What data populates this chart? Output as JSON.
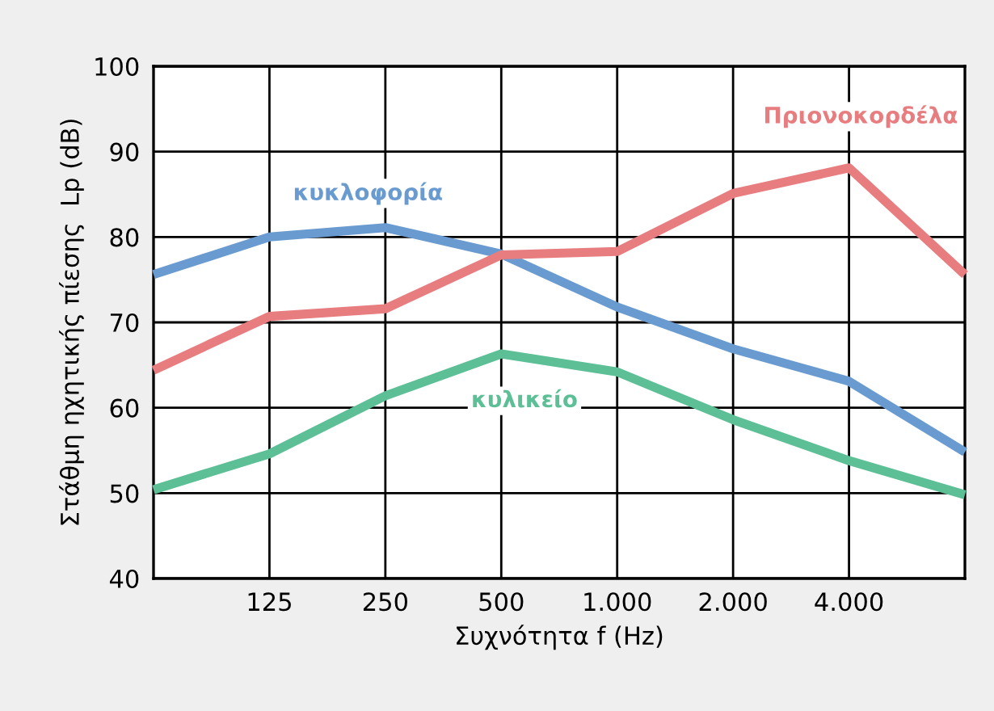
{
  "chart_data": {
    "type": "line",
    "xlabel": "Συχνότητα f (Hz)",
    "ylabel": "Στάθμη ηχητικής πίεσης  Lp (dB)",
    "categories": [
      null,
      "125",
      "250",
      "500",
      "1.000",
      "2.000",
      "4.000",
      null
    ],
    "series": [
      {
        "name": "κυκλοφορία",
        "color": "#6a9bd0",
        "values": [
          75.6,
          80,
          81.1,
          78,
          71.8,
          66.9,
          63.1,
          54.8
        ]
      },
      {
        "name": "Πριονοκορδέλα",
        "color": "#e87d80",
        "values": [
          64.4,
          70.7,
          71.6,
          77.9,
          78.3,
          85.1,
          88.1,
          75.6
        ]
      },
      {
        "name": "κυλικείο",
        "color": "#5cbf96",
        "values": [
          50.4,
          54.6,
          61.4,
          66.3,
          64.2,
          58.6,
          53.8,
          49.8
        ]
      }
    ],
    "ylim": [
      40,
      100
    ],
    "yticks": [
      40,
      50,
      60,
      70,
      80,
      90,
      100
    ],
    "grid": true,
    "marker": "none",
    "line_style": "solid"
  }
}
